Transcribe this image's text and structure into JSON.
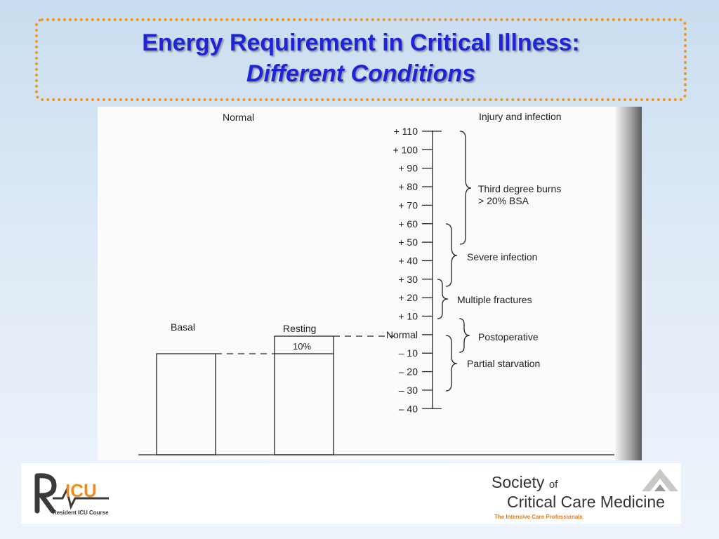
{
  "title": {
    "line1": "Energy Requirement in Critical Illness:",
    "line2": "Different Conditions"
  },
  "diagram": {
    "left_header": "Normal",
    "right_header": "Injury and infection",
    "bars": [
      {
        "label": "Basal"
      },
      {
        "label": "Resting",
        "inner_label": "10%"
      }
    ],
    "scale_ticks": [
      "+ 110",
      "+ 100",
      "+ 90",
      "+ 80",
      "+ 70",
      "+ 60",
      "+ 50",
      "+ 40",
      "+ 30",
      "+ 20",
      "+ 10",
      "Normal",
      "– 10",
      "– 20",
      "– 30",
      "– 40"
    ],
    "conditions": [
      {
        "name": "Third degree burns",
        "detail": "> 20% BSA",
        "range": [
          110,
          50
        ]
      },
      {
        "name": "Severe infection",
        "range": [
          60,
          20
        ]
      },
      {
        "name": "Multiple fractures",
        "range": [
          30,
          10
        ]
      },
      {
        "name": "Postoperative",
        "range": [
          0,
          -10
        ]
      },
      {
        "name": "Partial starvation",
        "range": [
          0,
          -30
        ]
      }
    ]
  },
  "footer": {
    "ricu_logo_text": "ICU",
    "ricu_subtitle": "Resident ICU Course",
    "sccm_society": "Society",
    "sccm_of": "of",
    "sccm_name": "Critical Care Medicine",
    "sccm_tagline": "The Intensive Care Professionals"
  }
}
